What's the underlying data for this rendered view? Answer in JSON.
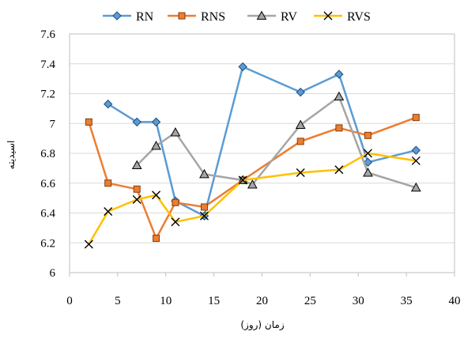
{
  "chart_data": {
    "type": "line",
    "xlabel": "زمان (روز)",
    "ylabel": "اسیدیته",
    "xlim": [
      0,
      40
    ],
    "ylim": [
      6,
      7.6
    ],
    "xticks": [
      0,
      5,
      10,
      15,
      20,
      25,
      30,
      35,
      40
    ],
    "xtick_labels": [
      "0",
      "5",
      "10",
      "15",
      "20",
      "25",
      "30",
      "35",
      "40"
    ],
    "yticks": [
      6,
      6.2,
      6.4,
      6.6,
      6.8,
      7,
      7.2,
      7.4,
      7.6
    ],
    "ytick_labels": [
      "6",
      "6.2",
      "6.4",
      "6.6",
      "6.8",
      "7",
      "7.2",
      "7.4",
      "7.6"
    ],
    "grid": true,
    "legend": "top",
    "series": [
      {
        "name": "RN",
        "color": "#5b9bd5",
        "marker": "diamond",
        "x": [
          4,
          7,
          9,
          11,
          14,
          18,
          24,
          28,
          31,
          36
        ],
        "y": [
          7.13,
          7.01,
          7.01,
          6.48,
          6.38,
          7.38,
          7.21,
          7.33,
          6.74,
          6.82
        ]
      },
      {
        "name": "RNS",
        "color": "#ed7d31",
        "marker": "square",
        "x": [
          2,
          4,
          7,
          9,
          11,
          14,
          18,
          24,
          28,
          31,
          36
        ],
        "y": [
          7.01,
          6.6,
          6.56,
          6.23,
          6.47,
          6.44,
          6.62,
          6.88,
          6.97,
          6.92,
          7.04
        ]
      },
      {
        "name": "RV",
        "color": "#a5a5a5",
        "marker": "triangle",
        "x": [
          7,
          9,
          11,
          14,
          18,
          19,
          24,
          28,
          31,
          36
        ],
        "y": [
          6.72,
          6.85,
          6.94,
          6.66,
          6.62,
          6.59,
          6.99,
          7.18,
          6.67,
          6.57
        ]
      },
      {
        "name": "RVS",
        "color": "#ffc000",
        "marker": "x",
        "x": [
          2,
          4,
          7,
          9,
          11,
          14,
          18,
          24,
          28,
          31,
          36
        ],
        "y": [
          6.19,
          6.41,
          6.49,
          6.52,
          6.34,
          6.38,
          6.62,
          6.67,
          6.69,
          6.8,
          6.75
        ]
      }
    ]
  }
}
